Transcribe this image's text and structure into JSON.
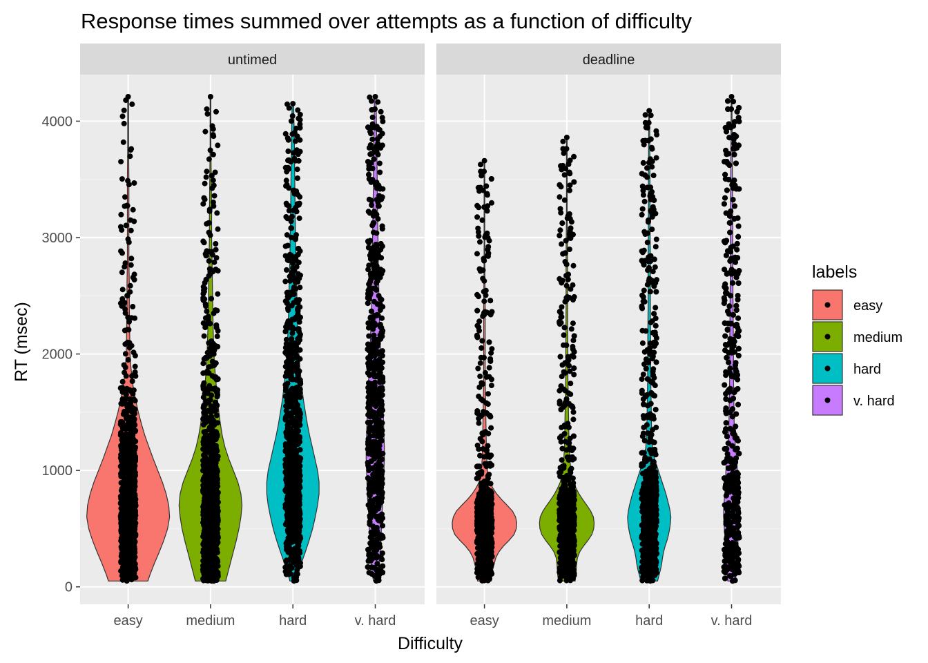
{
  "chart_data": {
    "type": "violin",
    "title": "Response times summed over attempts as a function of difficulty",
    "xlabel": "Difficulty",
    "ylabel": "RT (msec)",
    "ylim": [
      -150,
      4400
    ],
    "yticks": [
      0,
      1000,
      2000,
      3000,
      4000
    ],
    "categories": [
      "easy",
      "medium",
      "hard",
      "v. hard"
    ],
    "grid": true,
    "legend": {
      "title": "labels",
      "position": "right",
      "entries": [
        {
          "label": "easy",
          "color": "#F8766D"
        },
        {
          "label": "medium",
          "color": "#7CAE00"
        },
        {
          "label": "hard",
          "color": "#00BFC4"
        },
        {
          "label": "v. hard",
          "color": "#C77CFF"
        }
      ]
    },
    "facets": [
      {
        "label": "untimed",
        "series": [
          {
            "category": "easy",
            "color": "#F8766D",
            "min": 50,
            "max": 4210,
            "density": [
              [
                50,
                52
              ],
              [
                100,
                57
              ],
              [
                200,
                69
              ],
              [
                300,
                82
              ],
              [
                400,
                94
              ],
              [
                500,
                104
              ],
              [
                600,
                109
              ],
              [
                700,
                107
              ],
              [
                800,
                100
              ],
              [
                900,
                90
              ],
              [
                1000,
                78
              ],
              [
                1100,
                66
              ],
              [
                1200,
                55
              ],
              [
                1300,
                44
              ],
              [
                1400,
                35
              ],
              [
                1500,
                27
              ],
              [
                1600,
                20
              ],
              [
                1700,
                14
              ],
              [
                1800,
                10
              ],
              [
                1900,
                7
              ],
              [
                2000,
                5
              ],
              [
                2200,
                4
              ],
              [
                2400,
                3
              ],
              [
                2600,
                3
              ],
              [
                2800,
                2
              ],
              [
                3000,
                2
              ],
              [
                3200,
                2
              ],
              [
                3500,
                2
              ],
              [
                3800,
                1
              ],
              [
                4210,
                1
              ]
            ]
          },
          {
            "category": "medium",
            "color": "#7CAE00",
            "min": 50,
            "max": 4210,
            "density": [
              [
                50,
                40
              ],
              [
                100,
                44
              ],
              [
                200,
                52
              ],
              [
                300,
                60
              ],
              [
                400,
                68
              ],
              [
                500,
                75
              ],
              [
                600,
                80
              ],
              [
                700,
                83
              ],
              [
                800,
                80
              ],
              [
                900,
                72
              ],
              [
                1000,
                60
              ],
              [
                1100,
                48
              ],
              [
                1200,
                38
              ],
              [
                1300,
                31
              ],
              [
                1400,
                26
              ],
              [
                1500,
                22
              ],
              [
                1600,
                19
              ],
              [
                1700,
                16
              ],
              [
                1800,
                13
              ],
              [
                1900,
                11
              ],
              [
                2000,
                9
              ],
              [
                2200,
                7
              ],
              [
                2400,
                6
              ],
              [
                2600,
                5
              ],
              [
                2800,
                4
              ],
              [
                3000,
                3
              ],
              [
                3200,
                3
              ],
              [
                3500,
                2
              ],
              [
                3800,
                1
              ],
              [
                4210,
                1
              ]
            ]
          },
          {
            "category": "hard",
            "color": "#00BFC4",
            "min": 50,
            "max": 4150,
            "density": [
              [
                50,
                8
              ],
              [
                100,
                12
              ],
              [
                200,
                22
              ],
              [
                300,
                33
              ],
              [
                400,
                43
              ],
              [
                500,
                52
              ],
              [
                600,
                59
              ],
              [
                700,
                65
              ],
              [
                800,
                69
              ],
              [
                900,
                69
              ],
              [
                1000,
                65
              ],
              [
                1100,
                58
              ],
              [
                1200,
                51
              ],
              [
                1300,
                44
              ],
              [
                1400,
                38
              ],
              [
                1500,
                33
              ],
              [
                1600,
                28
              ],
              [
                1700,
                24
              ],
              [
                1800,
                21
              ],
              [
                1900,
                18
              ],
              [
                2000,
                16
              ],
              [
                2200,
                13
              ],
              [
                2400,
                11
              ],
              [
                2600,
                10
              ],
              [
                2800,
                8
              ],
              [
                3000,
                7
              ],
              [
                3200,
                6
              ],
              [
                3500,
                5
              ],
              [
                3800,
                4
              ],
              [
                4150,
                2
              ]
            ]
          },
          {
            "category": "v. hard",
            "color": "#C77CFF",
            "min": 50,
            "max": 4210,
            "density": [
              [
                50,
                5
              ],
              [
                100,
                7
              ],
              [
                200,
                10
              ],
              [
                300,
                13
              ],
              [
                400,
                15
              ],
              [
                500,
                16
              ],
              [
                600,
                17
              ],
              [
                700,
                19
              ],
              [
                800,
                21
              ],
              [
                900,
                22
              ],
              [
                1000,
                23
              ],
              [
                1100,
                24
              ],
              [
                1200,
                24
              ],
              [
                1300,
                23
              ],
              [
                1400,
                22
              ],
              [
                1500,
                21
              ],
              [
                1600,
                20
              ],
              [
                1700,
                19
              ],
              [
                1800,
                17
              ],
              [
                1900,
                16
              ],
              [
                2000,
                14
              ],
              [
                2200,
                12
              ],
              [
                2400,
                10
              ],
              [
                2600,
                9
              ],
              [
                2800,
                8
              ],
              [
                3000,
                7
              ],
              [
                3200,
                6
              ],
              [
                3500,
                5
              ],
              [
                3800,
                4
              ],
              [
                4210,
                2
              ]
            ]
          }
        ]
      },
      {
        "label": "deadline",
        "series": [
          {
            "category": "easy",
            "color": "#F8766D",
            "min": 50,
            "max": 3660,
            "density": [
              [
                50,
                18
              ],
              [
                100,
                20
              ],
              [
                150,
                22
              ],
              [
                200,
                26
              ],
              [
                250,
                30
              ],
              [
                300,
                38
              ],
              [
                350,
                50
              ],
              [
                400,
                65
              ],
              [
                450,
                78
              ],
              [
                500,
                84
              ],
              [
                550,
                85
              ],
              [
                600,
                82
              ],
              [
                650,
                74
              ],
              [
                700,
                60
              ],
              [
                750,
                45
              ],
              [
                800,
                32
              ],
              [
                850,
                22
              ],
              [
                900,
                14
              ],
              [
                1000,
                8
              ],
              [
                1100,
                6
              ],
              [
                1200,
                5
              ],
              [
                1400,
                4
              ],
              [
                1600,
                3
              ],
              [
                1800,
                2
              ],
              [
                2000,
                2
              ],
              [
                2400,
                2
              ],
              [
                2800,
                1
              ],
              [
                3200,
                1
              ],
              [
                3660,
                1
              ]
            ]
          },
          {
            "category": "medium",
            "color": "#7CAE00",
            "min": 50,
            "max": 3860,
            "density": [
              [
                50,
                22
              ],
              [
                100,
                24
              ],
              [
                150,
                25
              ],
              [
                200,
                26
              ],
              [
                250,
                28
              ],
              [
                300,
                34
              ],
              [
                350,
                44
              ],
              [
                400,
                56
              ],
              [
                450,
                66
              ],
              [
                500,
                71
              ],
              [
                550,
                72
              ],
              [
                600,
                70
              ],
              [
                650,
                63
              ],
              [
                700,
                53
              ],
              [
                750,
                42
              ],
              [
                800,
                32
              ],
              [
                850,
                24
              ],
              [
                900,
                17
              ],
              [
                1000,
                11
              ],
              [
                1100,
                8
              ],
              [
                1200,
                6
              ],
              [
                1400,
                5
              ],
              [
                1600,
                4
              ],
              [
                1800,
                3
              ],
              [
                2000,
                3
              ],
              [
                2400,
                2
              ],
              [
                2800,
                2
              ],
              [
                3200,
                1
              ],
              [
                3860,
                1
              ]
            ]
          },
          {
            "category": "hard",
            "color": "#00BFC4",
            "min": 50,
            "max": 4090,
            "density": [
              [
                50,
                22
              ],
              [
                100,
                26
              ],
              [
                150,
                30
              ],
              [
                200,
                33
              ],
              [
                250,
                35
              ],
              [
                300,
                38
              ],
              [
                350,
                42
              ],
              [
                400,
                47
              ],
              [
                450,
                51
              ],
              [
                500,
                54
              ],
              [
                550,
                56
              ],
              [
                600,
                57
              ],
              [
                650,
                55
              ],
              [
                700,
                52
              ],
              [
                750,
                48
              ],
              [
                800,
                44
              ],
              [
                850,
                39
              ],
              [
                900,
                34
              ],
              [
                1000,
                24
              ],
              [
                1100,
                14
              ],
              [
                1200,
                9
              ],
              [
                1400,
                6
              ],
              [
                1600,
                5
              ],
              [
                1800,
                4
              ],
              [
                2000,
                4
              ],
              [
                2400,
                3
              ],
              [
                2800,
                3
              ],
              [
                3200,
                2
              ],
              [
                3600,
                2
              ],
              [
                4090,
                1
              ]
            ]
          },
          {
            "category": "v. hard",
            "color": "#C77CFF",
            "min": 50,
            "max": 4210,
            "density": [
              [
                50,
                10
              ],
              [
                100,
                12
              ],
              [
                150,
                14
              ],
              [
                200,
                15
              ],
              [
                250,
                16
              ],
              [
                300,
                16
              ],
              [
                350,
                17
              ],
              [
                400,
                17
              ],
              [
                450,
                18
              ],
              [
                500,
                19
              ],
              [
                550,
                20
              ],
              [
                600,
                21
              ],
              [
                650,
                21
              ],
              [
                700,
                20
              ],
              [
                750,
                19
              ],
              [
                800,
                18
              ],
              [
                850,
                17
              ],
              [
                900,
                16
              ],
              [
                1000,
                15
              ],
              [
                1100,
                14
              ],
              [
                1200,
                10
              ],
              [
                1400,
                7
              ],
              [
                1600,
                6
              ],
              [
                1800,
                5
              ],
              [
                2000,
                5
              ],
              [
                2400,
                4
              ],
              [
                2800,
                3
              ],
              [
                3200,
                3
              ],
              [
                3600,
                2
              ],
              [
                4210,
                1
              ]
            ]
          }
        ]
      }
    ]
  }
}
